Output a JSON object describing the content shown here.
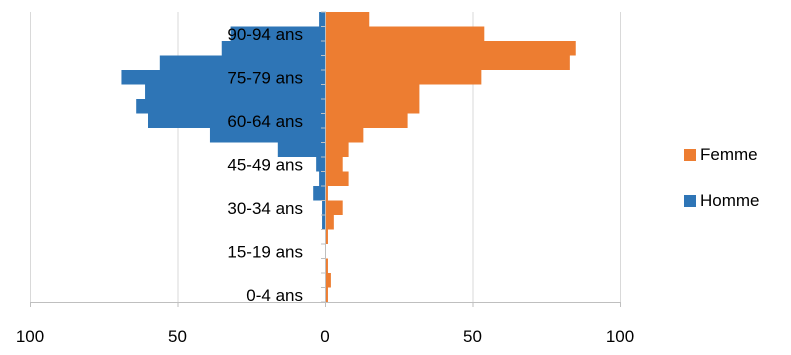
{
  "chart_data": {
    "type": "bar",
    "orientation": "horizontal",
    "layout": "population-pyramid",
    "title": "",
    "xlabel": "",
    "ylabel": "",
    "xlim": [
      -100,
      100
    ],
    "x_ticks": [
      -100,
      -50,
      0,
      50,
      100
    ],
    "x_tick_labels": [
      "100",
      "50",
      "0",
      "50",
      "100"
    ],
    "grid": "vertical",
    "legend": {
      "position": "right"
    },
    "categories": [
      "0-4 ans",
      "5-9 ans",
      "10-14 ans",
      "15-19 ans",
      "20-24 ans",
      "25-29 ans",
      "30-34 ans",
      "35-39 ans",
      "40-44 ans",
      "45-49 ans",
      "50-54 ans",
      "55-59 ans",
      "60-64 ans",
      "65-69 ans",
      "70-74 ans",
      "75-79 ans",
      "80-84 ans",
      "85-89 ans",
      "90-94 ans",
      "95+ ans"
    ],
    "category_labels_shown": [
      "0-4 ans",
      "",
      "",
      "15-19 ans",
      "",
      "",
      "30-34 ans",
      "",
      "",
      "45-49 ans",
      "",
      "",
      "60-64 ans",
      "",
      "",
      "75-79 ans",
      "",
      "",
      "90-94 ans",
      ""
    ],
    "series": [
      {
        "name": "Femme",
        "color": "#ED7D31",
        "values": [
          1,
          2,
          1,
          0,
          1,
          3,
          6,
          1,
          8,
          6,
          8,
          13,
          28,
          32,
          32,
          53,
          83,
          85,
          54,
          15
        ]
      },
      {
        "name": "Homme",
        "color": "#2E75B6",
        "values": [
          0,
          0,
          0,
          0,
          0,
          1,
          1,
          4,
          2,
          3,
          16,
          39,
          60,
          64,
          61,
          69,
          56,
          35,
          32,
          2
        ]
      }
    ],
    "legend_order": [
      "Femme",
      "Homme"
    ]
  }
}
